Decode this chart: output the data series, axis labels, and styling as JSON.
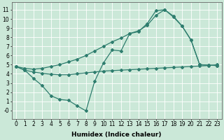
{
  "bg_color": "#cbe8d8",
  "grid_color": "#ffffff",
  "line_color": "#2e7d6e",
  "line_width": 0.9,
  "marker": "D",
  "marker_size": 2.0,
  "xlabel": "Humidex (Indice chaleur)",
  "xlabel_fontsize": 6.5,
  "tick_fontsize": 5.5,
  "xlim": [
    -0.5,
    23.5
  ],
  "ylim": [
    -0.9,
    11.8
  ],
  "xticks": [
    0,
    1,
    2,
    3,
    4,
    5,
    6,
    7,
    8,
    9,
    10,
    11,
    12,
    13,
    14,
    15,
    16,
    17,
    18,
    19,
    20,
    21,
    22,
    23
  ],
  "yticks": [
    0,
    1,
    2,
    3,
    4,
    5,
    6,
    7,
    8,
    9,
    10,
    11
  ],
  "ytick_labels": [
    "-0",
    "1",
    "2",
    "3",
    "4",
    "5",
    "6",
    "7",
    "8",
    "9",
    "10",
    "11"
  ],
  "line_zigzag_x": [
    0,
    1,
    2,
    3,
    4,
    5,
    6,
    7,
    8,
    9,
    10,
    11,
    12,
    13,
    14,
    15,
    16,
    17,
    18,
    19,
    20,
    21,
    22,
    23
  ],
  "line_zigzag_y": [
    4.8,
    4.4,
    3.5,
    2.7,
    1.6,
    1.2,
    1.1,
    0.5,
    -0.05,
    3.2,
    5.2,
    6.6,
    6.5,
    8.4,
    8.6,
    9.5,
    10.9,
    11.0,
    10.3,
    9.2,
    7.7,
    5.0,
    4.95,
    4.9
  ],
  "line_smooth_x": [
    0,
    1,
    2,
    3,
    4,
    5,
    6,
    7,
    8,
    9,
    10,
    11,
    12,
    13,
    14,
    15,
    16,
    17,
    18,
    19,
    20,
    21,
    22,
    23
  ],
  "line_smooth_y": [
    4.8,
    4.6,
    4.5,
    4.6,
    4.8,
    5.0,
    5.3,
    5.6,
    6.0,
    6.5,
    7.0,
    7.5,
    7.9,
    8.4,
    8.7,
    9.3,
    10.4,
    11.0,
    10.2,
    9.2,
    7.7,
    5.0,
    4.95,
    4.9
  ],
  "line_flat_x": [
    0,
    1,
    2,
    3,
    4,
    5,
    6,
    7,
    8,
    9,
    10,
    11,
    12,
    13,
    14,
    15,
    16,
    17,
    18,
    19,
    20,
    21,
    22,
    23
  ],
  "line_flat_y": [
    4.8,
    4.4,
    4.2,
    4.05,
    3.95,
    3.9,
    3.9,
    4.0,
    4.1,
    4.2,
    4.3,
    4.35,
    4.4,
    4.45,
    4.5,
    4.55,
    4.6,
    4.65,
    4.7,
    4.75,
    4.8,
    4.85,
    4.9,
    5.0
  ]
}
